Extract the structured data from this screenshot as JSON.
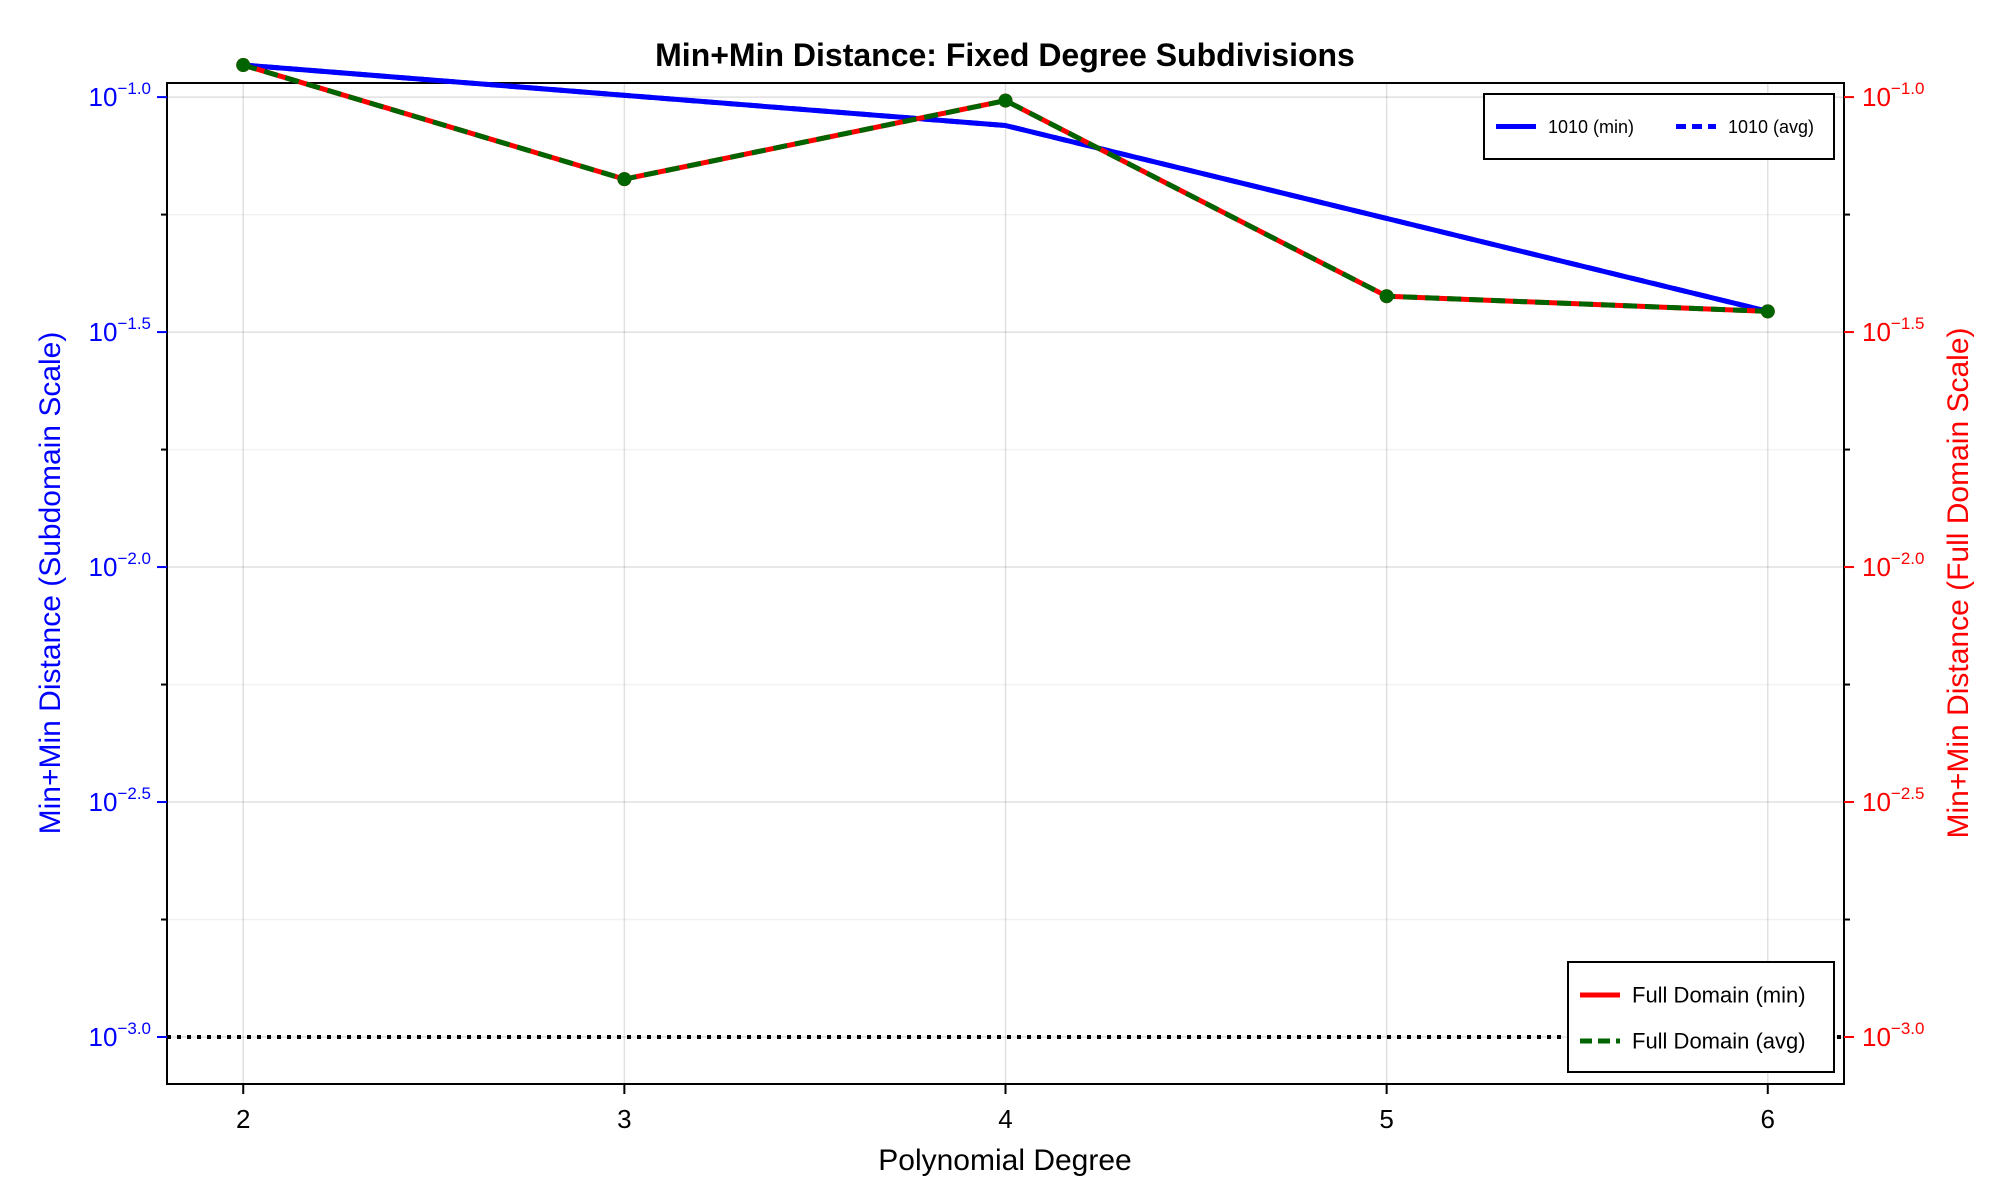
{
  "chart_data": {
    "type": "line",
    "title": "Min+Min Distance: Fixed Degree Subdivisions",
    "xlabel": "Polynomial Degree",
    "ylabel_left": "Min+Min Distance (Subdomain Scale)",
    "ylabel_right": "Min+Min Distance (Full Domain Scale)",
    "x": [
      2,
      3,
      4,
      5,
      6
    ],
    "x_ticks": [
      "2",
      "3",
      "4",
      "5",
      "6"
    ],
    "xlim": [
      1.8,
      6.2
    ],
    "yscale": "log",
    "ylim_log10": [
      -3.1,
      -0.97
    ],
    "y_ticks": [
      {
        "base": "10",
        "exp": "−1.0",
        "log10": -1.0
      },
      {
        "base": "10",
        "exp": "−1.5",
        "log10": -1.5
      },
      {
        "base": "10",
        "exp": "−2.0",
        "log10": -2.0
      },
      {
        "base": "10",
        "exp": "−2.5",
        "log10": -2.5
      },
      {
        "base": "10",
        "exp": "−3.0",
        "log10": -3.0
      }
    ],
    "grid": true,
    "series": [
      {
        "name": "1010 (min)",
        "axis": "left",
        "color": "#0000ff",
        "style": "solid",
        "marker": false,
        "values": [
          0.117,
          null,
          0.087,
          null,
          0.035
        ]
      },
      {
        "name": "1010 (avg)",
        "axis": "left",
        "color": "#0000ff",
        "style": "dashed",
        "marker": false,
        "values": [
          0.117,
          null,
          0.087,
          null,
          0.035
        ]
      },
      {
        "name": "Full Domain (min)",
        "axis": "right",
        "color": "#ff0000",
        "style": "solid",
        "marker": true,
        "values": [
          0.117,
          0.0669,
          0.0983,
          0.0377,
          0.035
        ]
      },
      {
        "name": "Full Domain (avg)",
        "axis": "right",
        "color": "#006400",
        "style": "dashed",
        "marker": true,
        "values": [
          0.117,
          0.0669,
          0.0983,
          0.0377,
          0.035
        ]
      }
    ],
    "reference_line": {
      "y": 0.001,
      "color": "#000000",
      "style": "dotted"
    },
    "legends": [
      {
        "placement": "top-right",
        "entries": [
          "1010 (min)",
          "1010 (avg)"
        ]
      },
      {
        "placement": "bottom-right",
        "entries": [
          "Full Domain (min)",
          "Full Domain (avg)"
        ]
      }
    ],
    "colors": {
      "left_axis": "#0000ff",
      "right_axis": "#ff0000"
    }
  }
}
